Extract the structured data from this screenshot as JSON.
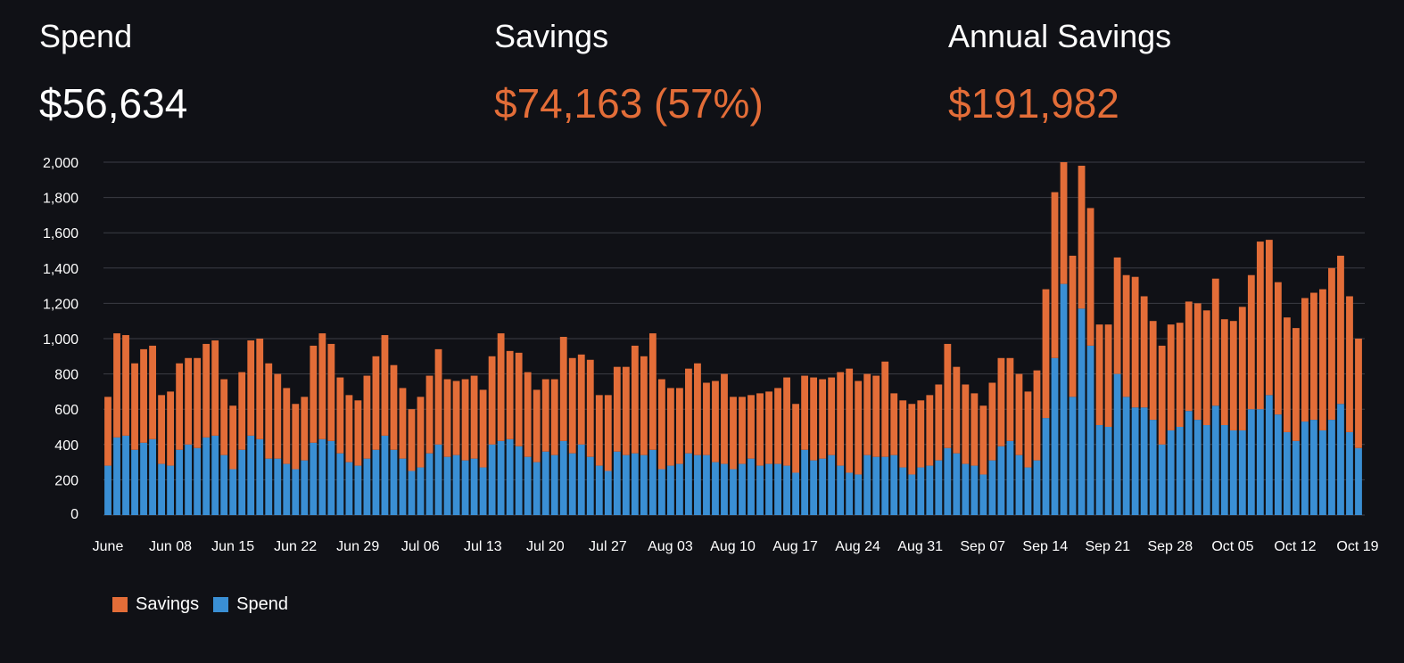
{
  "metrics": {
    "spend": {
      "label": "Spend",
      "value": "$56,634"
    },
    "savings": {
      "label": "Savings",
      "value": "$74,163 (57%)"
    },
    "annual": {
      "label": "Annual Savings",
      "value": "$191,982"
    }
  },
  "colors": {
    "background": "#101116",
    "savings": "#e36d38",
    "spend": "#3a8fd4",
    "grid": "#3b3d45",
    "text": "#ffffff"
  },
  "chart_data": {
    "type": "bar",
    "stacked": true,
    "title": "",
    "xlabel": "",
    "ylabel": "",
    "ylim": [
      0,
      2000
    ],
    "yticks": [
      0,
      200,
      400,
      600,
      800,
      1000,
      1200,
      1400,
      1600,
      1800,
      2000
    ],
    "ytick_labels": [
      "0",
      "200",
      "400",
      "600",
      "800",
      "1,000",
      "1,200",
      "1,400",
      "1,600",
      "1,800",
      "2,000"
    ],
    "xtick_labels": [
      "June",
      "Jun 08",
      "Jun 15",
      "Jun 22",
      "Jun 29",
      "Jul 06",
      "Jul 13",
      "Jul 20",
      "Jul 27",
      "Aug 03",
      "Aug 10",
      "Aug 17",
      "Aug 24",
      "Aug 31",
      "Sep 07",
      "Sep 14",
      "Sep 21",
      "Sep 28",
      "Oct 05",
      "Oct 12",
      "Oct 19"
    ],
    "legend": [
      "Savings",
      "Spend"
    ],
    "legend_position": "bottom-left",
    "series": [
      {
        "name": "Spend",
        "color": "#3a8fd4",
        "values": [
          280,
          440,
          450,
          370,
          410,
          430,
          290,
          280,
          370,
          400,
          380,
          440,
          450,
          340,
          260,
          370,
          450,
          430,
          320,
          320,
          290,
          260,
          310,
          410,
          430,
          420,
          350,
          300,
          280,
          320,
          370,
          450,
          370,
          320,
          250,
          270,
          350,
          400,
          330,
          340,
          310,
          320,
          270,
          400,
          420,
          430,
          390,
          330,
          300,
          360,
          340,
          420,
          350,
          400,
          330,
          280,
          250,
          360,
          340,
          350,
          340,
          370,
          260,
          280,
          290,
          350,
          340,
          340,
          300,
          290,
          260,
          290,
          320,
          280,
          290,
          290,
          280,
          240,
          370,
          310,
          320,
          340,
          280,
          240,
          230,
          340,
          330,
          330,
          340,
          270,
          230,
          270,
          280,
          310,
          380,
          350,
          290,
          280,
          230,
          310,
          390,
          420,
          340,
          270,
          310,
          550,
          890,
          1310,
          670,
          1170,
          960,
          510,
          500,
          800,
          670,
          610,
          610,
          540,
          400,
          480,
          500,
          590,
          540,
          510,
          620,
          510,
          480,
          480,
          600,
          600,
          680,
          570,
          470,
          420,
          530,
          540,
          480,
          540,
          630,
          470,
          380
        ]
      },
      {
        "name": "Savings",
        "color": "#e36d38",
        "values": [
          390,
          590,
          570,
          490,
          530,
          530,
          390,
          420,
          490,
          490,
          510,
          530,
          540,
          430,
          360,
          440,
          540,
          570,
          540,
          480,
          430,
          370,
          360,
          550,
          600,
          550,
          430,
          380,
          370,
          470,
          530,
          570,
          480,
          400,
          350,
          400,
          440,
          540,
          440,
          420,
          460,
          470,
          440,
          500,
          610,
          500,
          530,
          480,
          410,
          410,
          430,
          590,
          540,
          510,
          550,
          400,
          430,
          480,
          500,
          610,
          560,
          660,
          510,
          440,
          430,
          480,
          520,
          410,
          460,
          510,
          410,
          380,
          360,
          410,
          410,
          430,
          500,
          390,
          420,
          470,
          450,
          440,
          530,
          590,
          530,
          460,
          460,
          540,
          350,
          380,
          400,
          380,
          400,
          430,
          590,
          490,
          450,
          410,
          390,
          440,
          500,
          470,
          460,
          430,
          510,
          730,
          940,
          690,
          800,
          810,
          780,
          570,
          580,
          660,
          690,
          740,
          630,
          560,
          560,
          600,
          590,
          620,
          660,
          650,
          720,
          600,
          620,
          700,
          760,
          950,
          880,
          750,
          650,
          640,
          700,
          720,
          800,
          860,
          840,
          770,
          620
        ]
      }
    ]
  }
}
